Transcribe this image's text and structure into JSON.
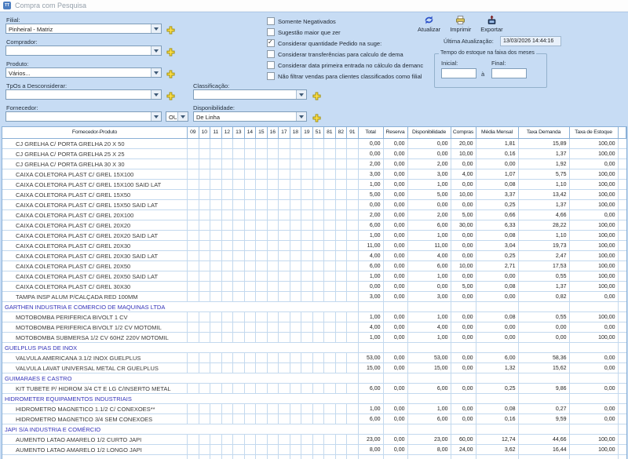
{
  "window": {
    "title": "Compra com Pesquisa",
    "icon": "TT"
  },
  "form": {
    "fields": [
      {
        "key": "filial",
        "label": "Filial:",
        "value": "Pinheiral - Matriz"
      },
      {
        "key": "comprador",
        "label": "Comprador:",
        "value": ""
      },
      {
        "key": "produto",
        "label": "Produto:",
        "value": "Vários..."
      },
      {
        "key": "tpos",
        "label": "TpOs a Desconsiderar:",
        "value": ""
      },
      {
        "key": "fornecedor",
        "label": "Fornecedor:",
        "value": ""
      }
    ],
    "or_selector": "OU",
    "classificacao": {
      "label": "Classificação:",
      "value": ""
    },
    "disponibilidade": {
      "label": "Disponibilidade:",
      "value": "De Linha"
    },
    "checkboxes": [
      {
        "label": "Somente Negativados",
        "checked": false
      },
      {
        "label": "Sugestão maior que zer",
        "checked": false
      },
      {
        "label": "Considerar quantidade Pedido na suge:",
        "checked": true
      },
      {
        "label": "Considerar transferências para calculo de dema",
        "checked": false
      },
      {
        "label": "Considerar data primeira entrada no cálculo da demanc",
        "checked": false
      },
      {
        "label": "Não filtrar vendas para clientes classificados como filial",
        "checked": false
      }
    ],
    "buttons": {
      "atualizar": "Atualizar",
      "imprimir": "Imprimir",
      "exportar": "Exportar"
    },
    "last_update_label": "Última Atualização:",
    "last_update_value": "13/03/2026 14:44:16",
    "stock_range": {
      "title": "Tempo do estoque na faixa dos meses",
      "initial_label": "Inicial:",
      "final_label": "Final:",
      "conjunction": "à",
      "initial_value": "",
      "final_value": ""
    }
  },
  "table": {
    "product_header": "Fornecedor-Produto",
    "month_columns": [
      "09",
      "10",
      "11",
      "12",
      "13",
      "14",
      "15",
      "16",
      "17",
      "18",
      "19",
      "51",
      "81",
      "82",
      "91"
    ],
    "value_columns": [
      "Total",
      "Reserva",
      "Disponibilidade",
      "Compras",
      "Média Mensal",
      "Taxa Demanda",
      "Taxa de Estoque"
    ],
    "rows": [
      {
        "type": "product",
        "name": "CJ GRELHA C/ PORTA GRELHA 20 X 50",
        "values": [
          "0,00",
          "0,00",
          "0,00",
          "20,00",
          "1,81",
          "15,89",
          "100,00"
        ]
      },
      {
        "type": "product",
        "name": "CJ GRELHA C/ PORTA GRELHA 25 X 25",
        "values": [
          "0,00",
          "0,00",
          "0,00",
          "10,00",
          "0,16",
          "1,37",
          "100,00"
        ]
      },
      {
        "type": "product",
        "name": "CJ GRELHA C/ PORTA GRELHA 30 X 30",
        "values": [
          "2,00",
          "0,00",
          "2,00",
          "0,00",
          "0,00",
          "1,92",
          "0,00"
        ]
      },
      {
        "type": "product",
        "name": "CAIXA COLETORA PLAST C/ GREL 15X100",
        "values": [
          "3,00",
          "0,00",
          "3,00",
          "4,00",
          "1,07",
          "5,75",
          "100,00"
        ]
      },
      {
        "type": "product",
        "name": "CAIXA COLETORA PLAST C/ GREL 15X100 SAID LAT",
        "values": [
          "1,00",
          "0,00",
          "1,00",
          "0,00",
          "0,08",
          "1,10",
          "100,00"
        ]
      },
      {
        "type": "product",
        "name": "CAIXA COLETORA PLAST C/ GREL 15X50",
        "values": [
          "5,00",
          "0,00",
          "5,00",
          "10,00",
          "3,37",
          "13,42",
          "100,00"
        ]
      },
      {
        "type": "product",
        "name": "CAIXA COLETORA PLAST C/ GREL 15X50 SAID LAT",
        "values": [
          "0,00",
          "0,00",
          "0,00",
          "0,00",
          "0,25",
          "1,37",
          "100,00"
        ]
      },
      {
        "type": "product",
        "name": "CAIXA COLETORA PLAST C/ GREL 20X100",
        "values": [
          "2,00",
          "0,00",
          "2,00",
          "5,00",
          "0,66",
          "4,66",
          "0,00"
        ]
      },
      {
        "type": "product",
        "name": "CAIXA COLETORA PLAST C/ GREL 20X20",
        "values": [
          "6,00",
          "0,00",
          "6,00",
          "30,00",
          "6,33",
          "28,22",
          "100,00"
        ]
      },
      {
        "type": "product",
        "name": "CAIXA COLETORA PLAST C/ GREL 20X20 SAID LAT",
        "values": [
          "1,00",
          "0,00",
          "1,00",
          "0,00",
          "0,08",
          "1,10",
          "100,00"
        ]
      },
      {
        "type": "product",
        "name": "CAIXA COLETORA PLAST C/ GREL 20X30",
        "values": [
          "11,00",
          "0,00",
          "11,00",
          "0,00",
          "3,04",
          "19,73",
          "100,00"
        ]
      },
      {
        "type": "product",
        "name": "CAIXA COLETORA PLAST C/ GREL 20X30 SAID LAT",
        "values": [
          "4,00",
          "0,00",
          "4,00",
          "0,00",
          "0,25",
          "2,47",
          "100,00"
        ]
      },
      {
        "type": "product",
        "name": "CAIXA COLETORA PLAST C/ GREL 20X50",
        "values": [
          "6,00",
          "0,00",
          "6,00",
          "10,00",
          "2,71",
          "17,53",
          "100,00"
        ]
      },
      {
        "type": "product",
        "name": "CAIXA COLETORA PLAST C/ GREL 20X50 SAID LAT",
        "values": [
          "1,00",
          "0,00",
          "1,00",
          "0,00",
          "0,00",
          "0,55",
          "100,00"
        ]
      },
      {
        "type": "product",
        "name": "CAIXA COLETORA PLAST C/ GREL 30X30",
        "values": [
          "0,00",
          "0,00",
          "0,00",
          "5,00",
          "0,08",
          "1,37",
          "100,00"
        ]
      },
      {
        "type": "product",
        "name": "TAMPA INSP ALUM P/CALÇADA RED 100MM",
        "values": [
          "3,00",
          "0,00",
          "3,00",
          "0,00",
          "0,00",
          "0,82",
          "0,00"
        ]
      },
      {
        "type": "group",
        "name": "GARTHEN INDUSTRIA E COMERCIO DE MAQUINAS LTDA",
        "values": [
          "",
          "",
          "",
          "",
          "",
          "",
          ""
        ]
      },
      {
        "type": "product",
        "name": "MOTOBOMBA PERIFERICA BIVOLT 1 CV",
        "values": [
          "1,00",
          "0,00",
          "1,00",
          "0,00",
          "0,08",
          "0,55",
          "100,00"
        ]
      },
      {
        "type": "product",
        "name": "MOTOBOMBA PERIFERICA BIVOLT 1/2 CV MOTOMIL",
        "values": [
          "4,00",
          "0,00",
          "4,00",
          "0,00",
          "0,00",
          "0,00",
          "0,00"
        ]
      },
      {
        "type": "product",
        "name": "MOTOBOMBA SUBMERSA 1/2 CV 60HZ 220V MOTOMIL",
        "values": [
          "1,00",
          "0,00",
          "1,00",
          "0,00",
          "0,00",
          "0,00",
          "100,00"
        ]
      },
      {
        "type": "group",
        "name": "GUELPLUS PIAS DE INOX",
        "values": [
          "",
          "",
          "",
          "",
          "",
          "",
          ""
        ]
      },
      {
        "type": "product",
        "name": "VALVULA AMERICANA 3.1/2 INOX GUELPLUS",
        "values": [
          "53,00",
          "0,00",
          "53,00",
          "0,00",
          "6,00",
          "58,36",
          "0,00"
        ]
      },
      {
        "type": "product",
        "name": "VALVULA LAVAT UNIVERSAL METAL CR GUELPLUS",
        "values": [
          "15,00",
          "0,00",
          "15,00",
          "0,00",
          "1,32",
          "15,62",
          "0,00"
        ]
      },
      {
        "type": "group",
        "name": "GUIMARAES E CASTRO",
        "values": [
          "",
          "",
          "",
          "",
          "",
          "",
          ""
        ]
      },
      {
        "type": "product",
        "name": "KIT TUBETE P/ HIDROM 3/4 CT E LG C/INSERTO METAL",
        "values": [
          "6,00",
          "0,00",
          "6,00",
          "0,00",
          "0,25",
          "9,86",
          "0,00"
        ]
      },
      {
        "type": "group",
        "name": "HIDROMETER EQUIPAMENTOS INDUSTRIAIS",
        "values": [
          "",
          "",
          "",
          "",
          "",
          "",
          ""
        ]
      },
      {
        "type": "product",
        "name": "HIDROMETRO MAGNETICO 1.1/2 C/ CONEXOES**",
        "values": [
          "1,00",
          "0,00",
          "1,00",
          "0,00",
          "0,08",
          "0,27",
          "0,00"
        ]
      },
      {
        "type": "product",
        "name": "HIDROMETRO MAGNETICO 3/4 SEM CONEXOES",
        "values": [
          "6,00",
          "0,00",
          "6,00",
          "0,00",
          "0,16",
          "9,59",
          "0,00"
        ]
      },
      {
        "type": "group",
        "name": "JAPI S/A INDUSTRIA E COMÉRCIO",
        "values": [
          "",
          "",
          "",
          "",
          "",
          "",
          ""
        ]
      },
      {
        "type": "product",
        "name": "AUMENTO LATAO AMARELO 1/2 CURTO JAPI",
        "values": [
          "23,00",
          "0,00",
          "23,00",
          "60,00",
          "12,74",
          "44,66",
          "100,00"
        ]
      },
      {
        "type": "product",
        "name": "AUMENTO LATAO AMARELO 1/2 LONGO JAPI",
        "values": [
          "8,00",
          "0,00",
          "8,00",
          "24,00",
          "3,62",
          "16,44",
          "100,00"
        ]
      },
      {
        "type": "product",
        "name": "",
        "values": [
          "",
          "",
          "",
          "",
          "",
          "",
          ""
        ]
      }
    ]
  },
  "colors": {
    "panel": "#c7dcf4",
    "grid_line": "#c3d9ee",
    "header_line": "#8ab0d6",
    "group_text": "#3232b8",
    "plus": "#f2d800",
    "accent_blue": "#2b50c8"
  }
}
